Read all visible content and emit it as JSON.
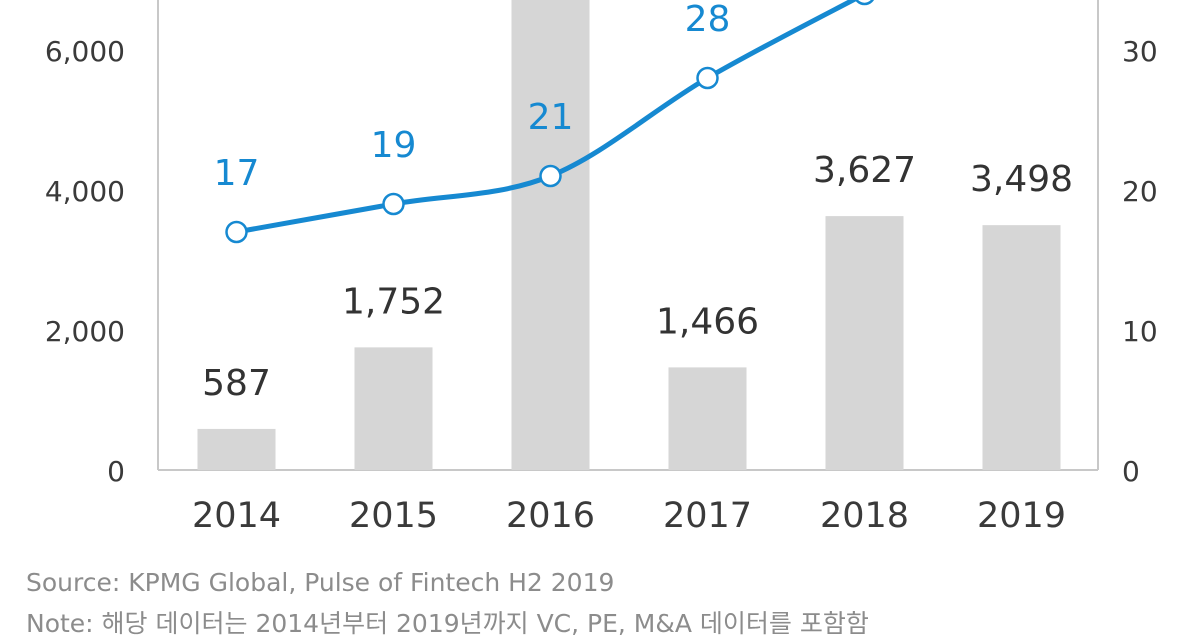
{
  "chart_data": {
    "type": "bar",
    "categories": [
      "2014",
      "2015",
      "2016",
      "2017",
      "2018",
      "2019"
    ],
    "series": [
      {
        "type": "bar",
        "axis": "left",
        "values": [
          587,
          1752,
          null,
          1466,
          3627,
          3498
        ],
        "labels": [
          "587",
          "1,752",
          "",
          "1,466",
          "3,627",
          "3,498"
        ]
      },
      {
        "type": "line",
        "axis": "right",
        "values": [
          17,
          19,
          21,
          28,
          34,
          null
        ],
        "labels": [
          "17",
          "19",
          "21",
          "28",
          "",
          ""
        ]
      }
    ],
    "left_axis": {
      "ticks": [
        0,
        2000,
        4000,
        6000
      ],
      "tick_labels": [
        "0",
        "2,000",
        "4,000",
        "6,000"
      ]
    },
    "right_axis": {
      "ticks": [
        0,
        10,
        20,
        30
      ],
      "tick_labels": [
        "0",
        "10",
        "20",
        "30"
      ]
    },
    "note": "2016 bar and the line's 2018/2019 points extend above the visible (cropped) area"
  },
  "colors": {
    "bar": "#d6d6d6",
    "line": "#1689d1",
    "value_label": "#333333",
    "line_label": "#1689d1",
    "tick": "#3a3a3a",
    "source": "#8c8c8c"
  },
  "source": "Source: KPMG Global, Pulse of Fintech H2 2019",
  "note_text": "Note: 해당 데이터는 2014년부터 2019년까지 VC, PE, M&A 데이터를 포함함"
}
